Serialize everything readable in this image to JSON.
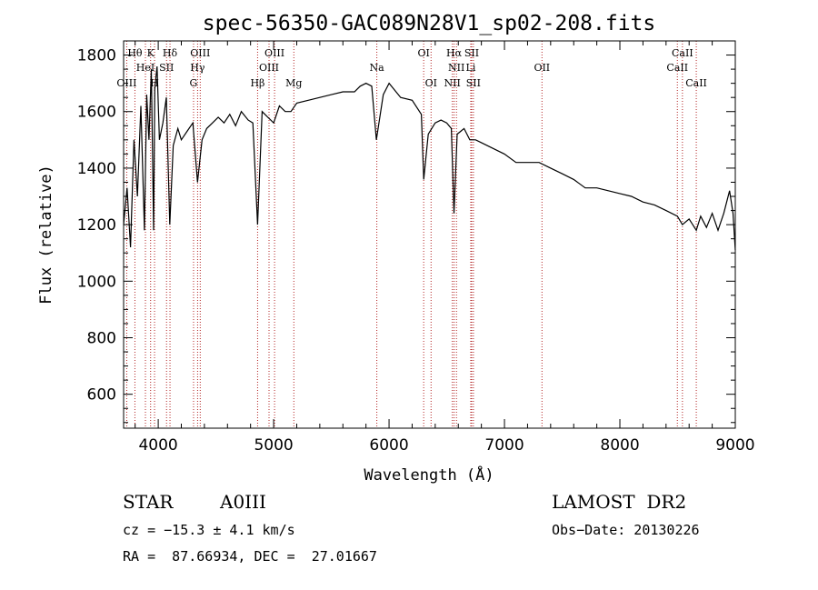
{
  "chart_data": {
    "type": "line",
    "title": "spec-56350-GAC089N28V1_sp02-208.fits",
    "xlabel": "Wavelength (Å)",
    "ylabel": "Flux (relative)",
    "xlim": [
      3700,
      9000
    ],
    "ylim": [
      480,
      1850
    ],
    "xticks": [
      4000,
      5000,
      6000,
      7000,
      8000,
      9000
    ],
    "yticks": [
      600,
      800,
      1000,
      1200,
      1400,
      1600,
      1800
    ],
    "grid": false,
    "series": [
      {
        "x": [
          3700,
          3730,
          3760,
          3790,
          3820,
          3850,
          3880,
          3900,
          3920,
          3940,
          3960,
          3970,
          3990,
          4010,
          4040,
          4070,
          4100,
          4130,
          4170,
          4200,
          4250,
          4300,
          4340,
          4380,
          4420,
          4470,
          4520,
          4570,
          4620,
          4670,
          4720,
          4780,
          4820,
          4861,
          4900,
          4950,
          5000,
          5050,
          5100,
          5150,
          5200,
          5300,
          5400,
          5500,
          5600,
          5700,
          5750,
          5800,
          5850,
          5890,
          5950,
          6000,
          6100,
          6200,
          6280,
          6300,
          6340,
          6400,
          6450,
          6500,
          6540,
          6563,
          6590,
          6650,
          6700,
          6750,
          6800,
          6900,
          7000,
          7100,
          7200,
          7300,
          7400,
          7500,
          7600,
          7700,
          7800,
          7900,
          8000,
          8100,
          8200,
          8300,
          8400,
          8498,
          8542,
          8600,
          8662,
          8700,
          8750,
          8800,
          8850,
          8900,
          8950,
          8980,
          9000
        ],
        "y": [
          1200,
          1330,
          1120,
          1500,
          1300,
          1620,
          1180,
          1660,
          1500,
          1750,
          1180,
          1680,
          1760,
          1500,
          1560,
          1650,
          1200,
          1480,
          1540,
          1500,
          1530,
          1560,
          1350,
          1500,
          1540,
          1560,
          1580,
          1560,
          1590,
          1550,
          1600,
          1570,
          1560,
          1200,
          1600,
          1580,
          1560,
          1620,
          1600,
          1600,
          1630,
          1640,
          1650,
          1660,
          1670,
          1670,
          1690,
          1700,
          1690,
          1500,
          1660,
          1700,
          1650,
          1640,
          1590,
          1360,
          1520,
          1560,
          1570,
          1560,
          1540,
          1240,
          1520,
          1540,
          1500,
          1500,
          1490,
          1470,
          1450,
          1420,
          1420,
          1420,
          1400,
          1380,
          1360,
          1330,
          1330,
          1320,
          1310,
          1300,
          1280,
          1270,
          1250,
          1230,
          1200,
          1220,
          1180,
          1230,
          1190,
          1240,
          1180,
          1240,
          1320,
          1240,
          1110
        ]
      }
    ],
    "lines": [
      {
        "name": "Hθ",
        "wave": 3798,
        "row": 0
      },
      {
        "name": "K",
        "wave": 3934,
        "row": 0
      },
      {
        "name": "Hδ",
        "wave": 4102,
        "row": 0
      },
      {
        "name": "OIII",
        "wave": 4364,
        "row": 0
      },
      {
        "name": "OIII",
        "wave": 5008,
        "row": 0
      },
      {
        "name": "OI",
        "wave": 6300,
        "row": 0
      },
      {
        "name": "Hα",
        "wave": 6563,
        "row": 0
      },
      {
        "name": "SII",
        "wave": 6716,
        "row": 0
      },
      {
        "name": "CaII",
        "wave": 8542,
        "row": 0
      },
      {
        "name": "HeI",
        "wave": 3889,
        "row": 1
      },
      {
        "name": "SII",
        "wave": 4072,
        "row": 1
      },
      {
        "name": "Hγ",
        "wave": 4341,
        "row": 1
      },
      {
        "name": "OIII",
        "wave": 4960,
        "row": 1
      },
      {
        "name": "Na",
        "wave": 5894,
        "row": 1
      },
      {
        "name": "NII",
        "wave": 6584,
        "row": 1
      },
      {
        "name": "Li",
        "wave": 6708,
        "row": 1
      },
      {
        "name": "OII",
        "wave": 7325,
        "row": 1
      },
      {
        "name": "CaII",
        "wave": 8498,
        "row": 1
      },
      {
        "name": "OIII",
        "wave": 3727,
        "row": 2
      },
      {
        "name": "H",
        "wave": 3968,
        "row": 2
      },
      {
        "name": "G",
        "wave": 4306,
        "row": 2
      },
      {
        "name": "Hβ",
        "wave": 4861,
        "row": 2
      },
      {
        "name": "Mg",
        "wave": 5175,
        "row": 2
      },
      {
        "name": "OI",
        "wave": 6364,
        "row": 2
      },
      {
        "name": "NII",
        "wave": 6548,
        "row": 2
      },
      {
        "name": "SII",
        "wave": 6731,
        "row": 2
      },
      {
        "name": "CaII",
        "wave": 8662,
        "row": 2
      }
    ],
    "colors": {
      "spectrum": "#000000",
      "line_markers": "#b22222"
    }
  },
  "info": {
    "class": "STAR",
    "subclass": "A0III",
    "survey": "LAMOST  DR2",
    "cz": "cz = −15.3 ± 4.1 km/s",
    "obs_date": "Obs−Date: 20130226",
    "coords": "RA =  87.66934, DEC =  27.01667"
  }
}
